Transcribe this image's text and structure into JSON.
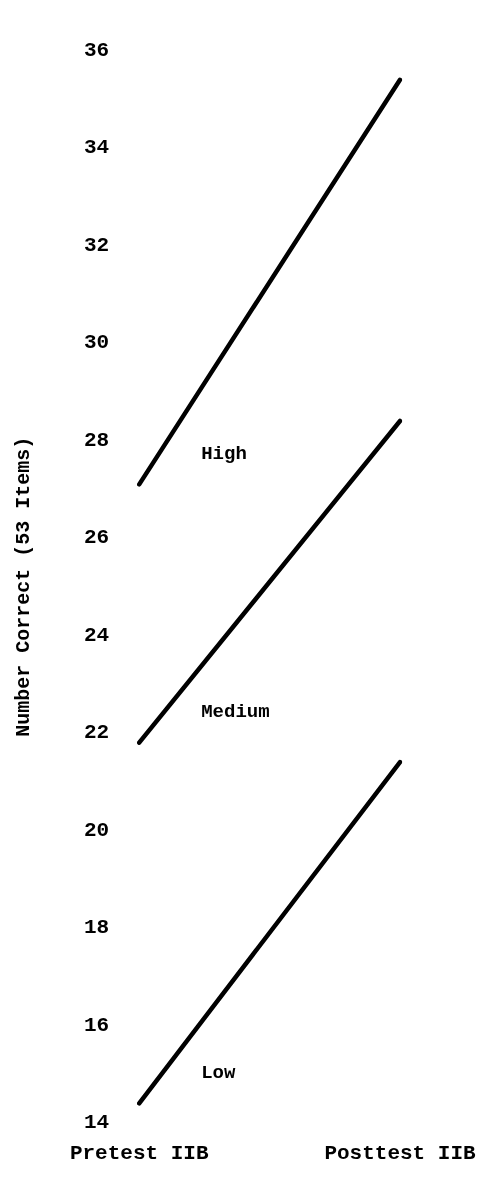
{
  "chart_data": {
    "type": "line",
    "ylabel": "Number Correct (53 Items)",
    "categories": [
      "Pretest IIB",
      "Posttest IIB"
    ],
    "ylim": [
      14,
      36
    ],
    "yticks": [
      14,
      16,
      18,
      20,
      22,
      24,
      26,
      28,
      30,
      32,
      34,
      36
    ],
    "series": [
      {
        "name": "High",
        "color": "#000000",
        "values": [
          27.1,
          35.4
        ]
      },
      {
        "name": "Medium",
        "color": "#000000",
        "values": [
          21.8,
          28.4
        ]
      },
      {
        "name": "Low",
        "color": "#000000",
        "values": [
          14.4,
          21.4
        ]
      }
    ]
  }
}
